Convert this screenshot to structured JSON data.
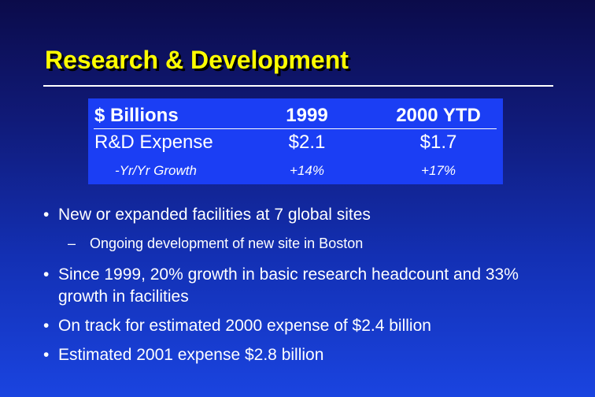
{
  "slide": {
    "title": "Research & Development"
  },
  "table": {
    "header": [
      "$ Billions",
      "1999",
      "2000 YTD"
    ],
    "rows": [
      [
        "R&D Expense",
        "$2.1",
        "$1.7"
      ],
      [
        "-Yr/Yr Growth",
        "+14%",
        "+17%"
      ]
    ]
  },
  "bullets": [
    "New or expanded facilities at 7 global sites",
    "Ongoing development of new site in Boston",
    "Since 1999, 20% growth in basic research headcount and 33% growth in facilities",
    "On track for estimated 2000 expense of $2.4 billion",
    "Estimated 2001 expense $2.8 billion"
  ],
  "colors": {
    "title": "#ffff00",
    "table_background": "#1b3ef4",
    "text": "#ffffff"
  }
}
